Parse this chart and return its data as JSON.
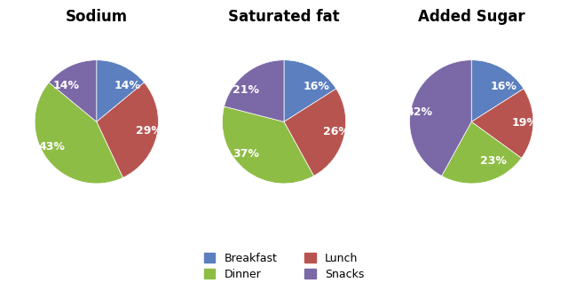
{
  "charts": [
    {
      "title": "Sodium",
      "values": [
        14,
        29,
        43,
        14
      ],
      "labels": [
        "14%",
        "29%",
        "43%",
        "14%"
      ],
      "startangle": 90
    },
    {
      "title": "Saturated fat",
      "values": [
        16,
        26,
        37,
        21
      ],
      "labels": [
        "16%",
        "26%",
        "37%",
        "21%"
      ],
      "startangle": 90
    },
    {
      "title": "Added Sugar",
      "values": [
        16,
        19,
        23,
        42
      ],
      "labels": [
        "16%",
        "19%",
        "23%",
        "42%"
      ],
      "startangle": 90
    }
  ],
  "colors": [
    "#5B7FBF",
    "#B85450",
    "#8EBD45",
    "#7B68A6"
  ],
  "legend_labels": [
    "Breakfast",
    "Lunch",
    "Dinner",
    "Snacks"
  ],
  "background_color": "#FFFFFF",
  "title_fontsize": 12,
  "label_fontsize": 9,
  "legend_fontsize": 9
}
